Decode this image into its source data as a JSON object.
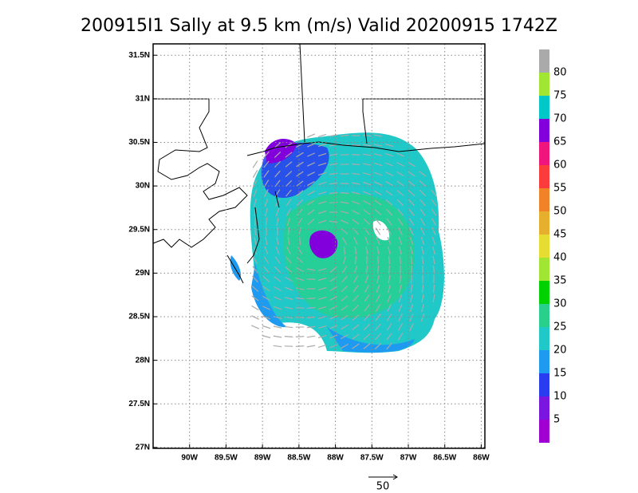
{
  "title": "200915I1 Sally at 9.5 km (m/s) Valid 20200915 1742Z",
  "map": {
    "lon_range": [
      -90.5,
      -85.95
    ],
    "lat_range": [
      26.99,
      31.63
    ],
    "lon_ticks": [
      {
        "value": -90,
        "label": "90W"
      },
      {
        "value": -89.5,
        "label": "89.5W"
      },
      {
        "value": -89,
        "label": "89W"
      },
      {
        "value": -88.5,
        "label": "88.5W"
      },
      {
        "value": -88,
        "label": "88W"
      },
      {
        "value": -87.5,
        "label": "87.5W"
      },
      {
        "value": -87,
        "label": "87W"
      },
      {
        "value": -86.5,
        "label": "86.5W"
      },
      {
        "value": -86,
        "label": "86W"
      }
    ],
    "lat_ticks": [
      {
        "value": 27,
        "label": "27N"
      },
      {
        "value": 27.5,
        "label": "27.5N"
      },
      {
        "value": 28,
        "label": "28N"
      },
      {
        "value": 28.5,
        "label": "28.5N"
      },
      {
        "value": 29,
        "label": "29N"
      },
      {
        "value": 29.5,
        "label": "29.5N"
      },
      {
        "value": 30,
        "label": "30N"
      },
      {
        "value": 30.5,
        "label": "30.5N"
      },
      {
        "value": 31,
        "label": "31N"
      },
      {
        "value": 31.5,
        "label": "31.5N"
      }
    ]
  },
  "colorbar": {
    "levels": [
      5,
      10,
      15,
      20,
      25,
      30,
      35,
      40,
      45,
      50,
      55,
      60,
      65,
      70,
      75,
      80
    ],
    "colors": [
      "#a000d2",
      "#7a16e0",
      "#2a3cf0",
      "#1e9bf0",
      "#20c8c8",
      "#28d08c",
      "#00d200",
      "#a0e632",
      "#e6dc32",
      "#e6af2d",
      "#f08228",
      "#fa3c3c",
      "#f0147d",
      "#8200dc",
      "#00c8c8",
      "#a0e632",
      "#aaaaaa"
    ]
  },
  "reference_vector": {
    "label": "50"
  }
}
